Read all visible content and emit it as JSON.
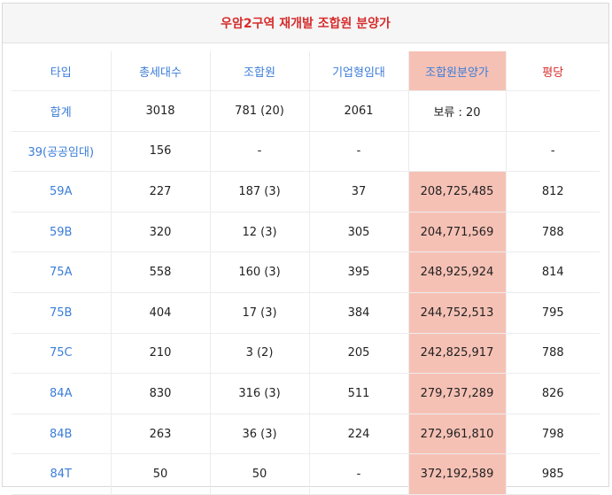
{
  "title": "우암2구역 재개발 조합원 분양가",
  "headers": [
    "타입",
    "총세대수",
    "조합원",
    "기업형임대",
    "조합원분양가",
    "평당"
  ],
  "rows": [
    {
      "type": "합계",
      "total": "3018",
      "members": "781 (20)",
      "rental": "2061",
      "price": "보류 : 20",
      "per_pyeong": ""
    },
    {
      "type": "39(공공임대)",
      "total": "156",
      "members": "-",
      "rental": "-",
      "price": "",
      "per_pyeong": "-"
    },
    {
      "type": "59A",
      "total": "227",
      "members": "187 (3)",
      "rental": "37",
      "price": "208,725,485",
      "per_pyeong": "812"
    },
    {
      "type": "59B",
      "total": "320",
      "members": "12 (3)",
      "rental": "305",
      "price": "204,771,569",
      "per_pyeong": "788"
    },
    {
      "type": "75A",
      "total": "558",
      "members": "160 (3)",
      "rental": "395",
      "price": "248,925,924",
      "per_pyeong": "814"
    },
    {
      "type": "75B",
      "total": "404",
      "members": "17 (3)",
      "rental": "384",
      "price": "244,752,513",
      "per_pyeong": "795"
    },
    {
      "type": "75C",
      "total": "210",
      "members": "3 (2)",
      "rental": "205",
      "price": "242,825,917",
      "per_pyeong": "788"
    },
    {
      "type": "84A",
      "total": "830",
      "members": "316 (3)",
      "rental": "511",
      "price": "279,737,289",
      "per_pyeong": "826"
    },
    {
      "type": "84B",
      "total": "263",
      "members": "36 (3)",
      "rental": "224",
      "price": "272,961,810",
      "per_pyeong": "798"
    },
    {
      "type": "84T",
      "total": "50",
      "members": "50",
      "rental": "-",
      "price": "372,192,589",
      "per_pyeong": "985"
    }
  ],
  "colors": {
    "title": "#d62d2d",
    "link_blue": "#3b7dd8",
    "price_bg": "#f6c1b5"
  }
}
